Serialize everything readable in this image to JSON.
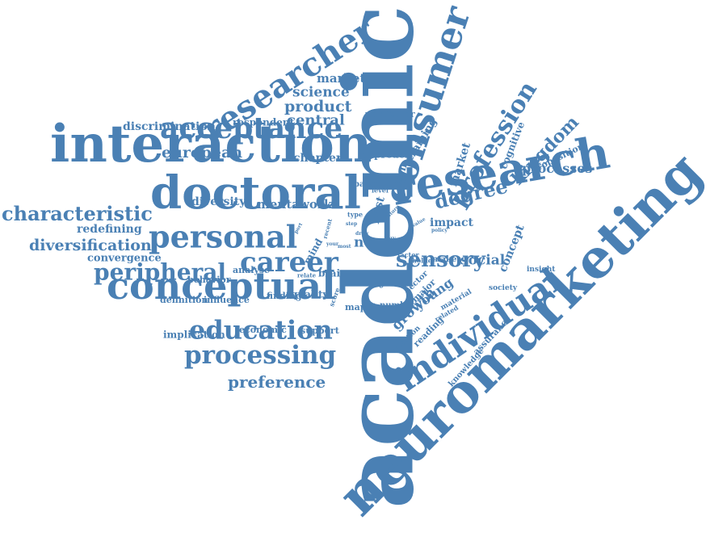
{
  "cloud": {
    "color": "#4a80b4",
    "words": [
      {
        "text": "academic"
      },
      {
        "text": "neuromarketing"
      },
      {
        "text": "interaction"
      },
      {
        "text": "doctoral"
      },
      {
        "text": "research"
      },
      {
        "text": "consumer"
      },
      {
        "text": "conceptual"
      },
      {
        "text": "individual"
      },
      {
        "text": "researcher"
      },
      {
        "text": "acceptance"
      },
      {
        "text": "personal"
      },
      {
        "text": "career"
      },
      {
        "text": "education"
      },
      {
        "text": "processing"
      },
      {
        "text": "peripheral"
      },
      {
        "text": "profession"
      },
      {
        "text": "characteristic"
      },
      {
        "text": "sensory"
      },
      {
        "text": "degree"
      },
      {
        "text": "kingdom"
      },
      {
        "text": "preference"
      },
      {
        "text": "diversification"
      },
      {
        "text": "european"
      },
      {
        "text": "product"
      },
      {
        "text": "central"
      },
      {
        "text": "science"
      },
      {
        "text": "marketing"
      },
      {
        "text": "discrimination"
      },
      {
        "text": "respondent"
      },
      {
        "text": "particular"
      },
      {
        "text": "chapter"
      },
      {
        "text": "diversity"
      },
      {
        "text": "mental"
      },
      {
        "text": "work"
      },
      {
        "text": "redefining"
      },
      {
        "text": "convergence"
      },
      {
        "text": "processes"
      },
      {
        "text": "proposition"
      },
      {
        "text": "cognitive"
      },
      {
        "text": "market"
      },
      {
        "text": "term"
      },
      {
        "text": "training"
      },
      {
        "text": "approach"
      },
      {
        "text": "growth"
      },
      {
        "text": "young"
      },
      {
        "text": "social"
      },
      {
        "text": "concept"
      },
      {
        "text": "impact"
      },
      {
        "text": "norm"
      },
      {
        "text": "study"
      },
      {
        "text": "post"
      },
      {
        "text": "paper"
      },
      {
        "text": "level"
      },
      {
        "text": "mind"
      },
      {
        "text": "brain"
      },
      {
        "text": "quality"
      },
      {
        "text": "finding"
      },
      {
        "text": "analyse"
      },
      {
        "text": "behavior"
      },
      {
        "text": "definition"
      },
      {
        "text": "influence"
      },
      {
        "text": "implication"
      },
      {
        "text": "economic"
      },
      {
        "text": "support"
      },
      {
        "text": "mapping"
      },
      {
        "text": "number"
      },
      {
        "text": "major"
      },
      {
        "text": "sector"
      },
      {
        "text": "reading"
      },
      {
        "text": "question"
      },
      {
        "text": "knowledge"
      },
      {
        "text": "assurance"
      },
      {
        "text": "material"
      },
      {
        "text": "related"
      },
      {
        "text": "society"
      },
      {
        "text": "insight"
      },
      {
        "text": "make"
      },
      {
        "text": "holder"
      },
      {
        "text": "factor"
      },
      {
        "text": "value"
      },
      {
        "text": "policy"
      },
      {
        "text": "type"
      },
      {
        "text": "step"
      },
      {
        "text": "future"
      },
      {
        "text": "recent"
      },
      {
        "text": "relate"
      },
      {
        "text": "score"
      },
      {
        "text": "port"
      },
      {
        "text": "your"
      },
      {
        "text": "most"
      },
      {
        "text": "very"
      },
      {
        "text": "draw"
      }
    ]
  }
}
